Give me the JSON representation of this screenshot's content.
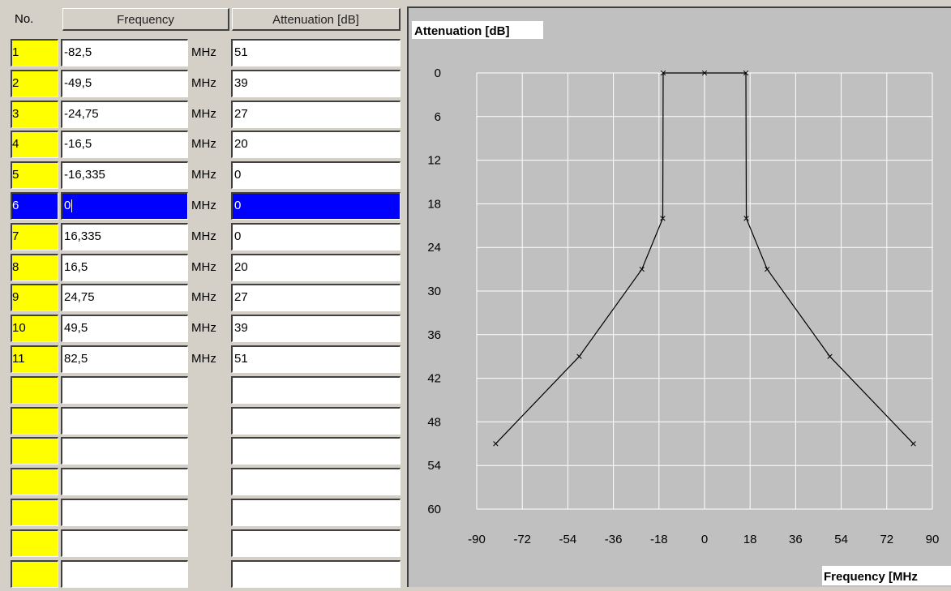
{
  "table": {
    "col_no": "No.",
    "col_freq": "Frequency",
    "col_att": "Attenuation [dB]",
    "unit": "MHz",
    "selected_row": 6,
    "rows": [
      {
        "no": "1",
        "freq": "-82,5",
        "att": "51"
      },
      {
        "no": "2",
        "freq": "-49,5",
        "att": "39"
      },
      {
        "no": "3",
        "freq": "-24,75",
        "att": "27"
      },
      {
        "no": "4",
        "freq": "-16,5",
        "att": "20"
      },
      {
        "no": "5",
        "freq": "-16,335",
        "att": "0"
      },
      {
        "no": "6",
        "freq": "0",
        "att": "0"
      },
      {
        "no": "7",
        "freq": "16,335",
        "att": "0"
      },
      {
        "no": "8",
        "freq": "16,5",
        "att": "20"
      },
      {
        "no": "9",
        "freq": "24,75",
        "att": "27"
      },
      {
        "no": "10",
        "freq": "49,5",
        "att": "39"
      },
      {
        "no": "11",
        "freq": "82,5",
        "att": "51"
      },
      {
        "no": "",
        "freq": "",
        "att": ""
      },
      {
        "no": "",
        "freq": "",
        "att": ""
      },
      {
        "no": "",
        "freq": "",
        "att": ""
      },
      {
        "no": "",
        "freq": "",
        "att": ""
      },
      {
        "no": "",
        "freq": "",
        "att": ""
      },
      {
        "no": "",
        "freq": "",
        "att": ""
      },
      {
        "no": "",
        "freq": "",
        "att": ""
      }
    ]
  },
  "chart_data": {
    "type": "line",
    "ylabel": "Attenuation [dB]",
    "xlabel": "Frequency [MHz",
    "x": [
      -82.5,
      -49.5,
      -24.75,
      -16.5,
      -16.335,
      0,
      16.335,
      16.5,
      24.75,
      49.5,
      82.5
    ],
    "y": [
      51,
      39,
      27,
      20,
      0,
      0,
      0,
      20,
      27,
      39,
      51
    ],
    "xlim": [
      -90,
      90
    ],
    "ylim": [
      0,
      60
    ],
    "y_inverted": true,
    "x_ticks": [
      "-90",
      "-72",
      "-54",
      "-36",
      "-18",
      "0",
      "18",
      "36",
      "54",
      "72",
      "90"
    ],
    "y_ticks": [
      "0",
      "6",
      "12",
      "18",
      "24",
      "30",
      "36",
      "42",
      "48",
      "54",
      "60"
    ],
    "grid": true,
    "marker": "x",
    "colors": {
      "background": "#c0c0c0",
      "grid": "#ffffff",
      "line": "#000000"
    }
  }
}
